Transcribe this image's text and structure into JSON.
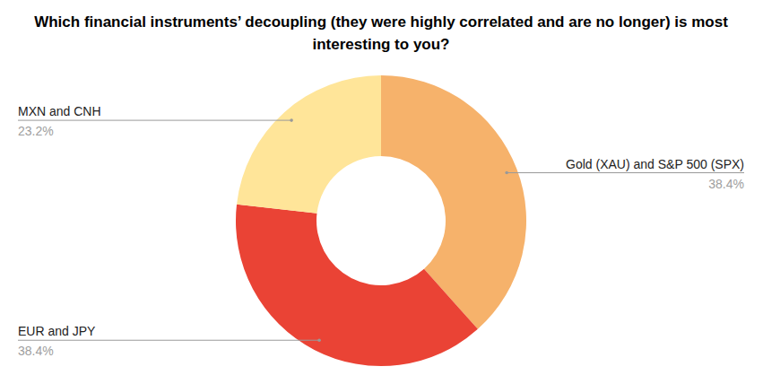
{
  "chart_data": {
    "type": "pie",
    "donut": true,
    "title": "Which financial instruments’ decoupling (they were highly correlated and are no longer) is most interesting to you?",
    "categories": [
      "Gold (XAU) and S&P 500 (SPX)",
      "EUR and JPY",
      "MXN and CNH"
    ],
    "values": [
      38.4,
      38.4,
      23.2
    ],
    "value_labels": [
      "38.4%",
      "38.4%",
      "23.2%"
    ],
    "colors": [
      "#f6b26b",
      "#ea4335",
      "#ffe599"
    ],
    "data_labels": true
  }
}
